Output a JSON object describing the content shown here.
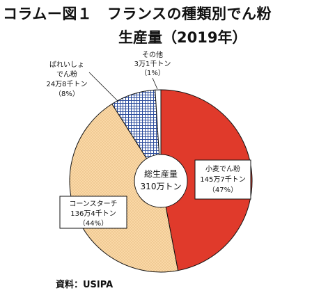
{
  "title_line1": "コラムー図１　フランスの種類別でん粉",
  "title_line2": "生産量（2019年）",
  "source": "資料：USIPA",
  "chart_data": {
    "type": "pie",
    "title": "コラムー図１　フランスの種類別でん粉 生産量（2019年）",
    "total_label": [
      "総生産量",
      "310万トン"
    ],
    "start_angle_deg": 0,
    "direction": "clockwise",
    "slices": [
      {
        "label": [
          "小麦でん粉",
          "145万7千トン",
          "（47%）"
        ],
        "percent": 47,
        "color": "#e03a2b",
        "pattern": "solid"
      },
      {
        "label": [
          "コーンスターチ",
          "136万4千トン",
          "（44%）"
        ],
        "percent": 44,
        "color": "#fad8a6",
        "pattern": "dots"
      },
      {
        "label": [
          "ばれいしょ",
          "でん粉",
          "24万8千トン",
          "（8%）"
        ],
        "percent": 8,
        "color": "#2f4f9e",
        "pattern": "grid"
      },
      {
        "label": [
          "その他",
          "3万1千トン",
          "（1%）"
        ],
        "percent": 1,
        "color": "#ffffff",
        "pattern": "solid"
      }
    ]
  }
}
